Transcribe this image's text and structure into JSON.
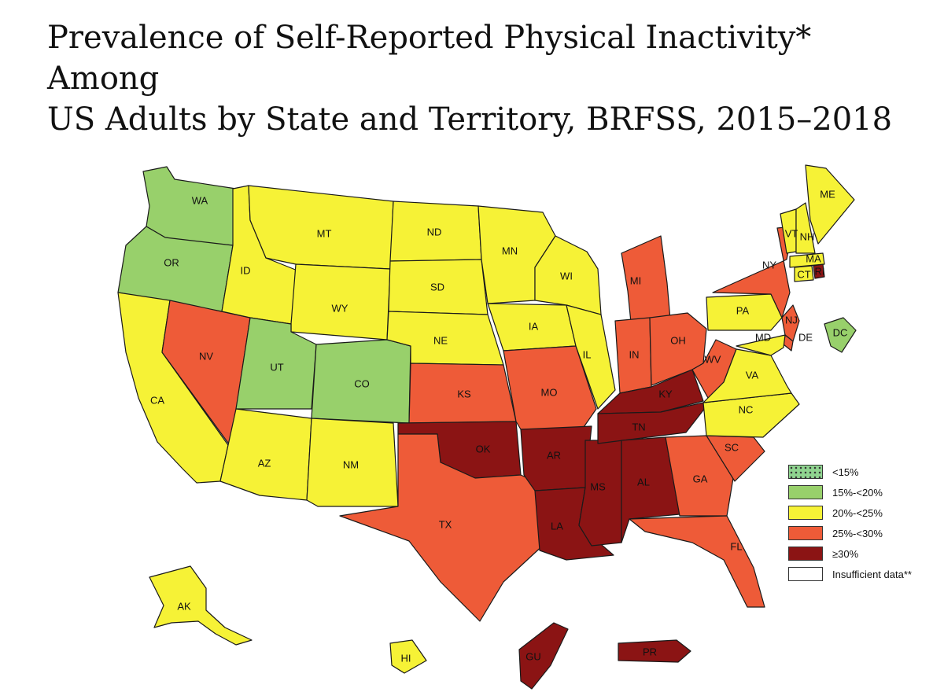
{
  "title": {
    "line1": "Prevalence of Self-Reported Physical Inactivity* Among",
    "line2": "US Adults by State and Territory, BRFSS, 2015–2018"
  },
  "colors": {
    "lt15": "#8fd48f",
    "15_20": "#98d06b",
    "20_25": "#f6f236",
    "25_30": "#ee5b38",
    "ge30": "#8b1414",
    "insufficient": "#ffffff"
  },
  "legend": [
    {
      "key": "lt15",
      "label": "<15%",
      "pattern": "dots"
    },
    {
      "key": "15_20",
      "label": "15%-<20%"
    },
    {
      "key": "20_25",
      "label": "20%-<25%"
    },
    {
      "key": "25_30",
      "label": "25%-<30%"
    },
    {
      "key": "ge30",
      "label": "≥30%"
    },
    {
      "key": "insufficient",
      "label": "Insufficient data**"
    }
  ],
  "states": [
    {
      "abbr": "WA",
      "category": "15_20"
    },
    {
      "abbr": "OR",
      "category": "15_20"
    },
    {
      "abbr": "CA",
      "category": "20_25"
    },
    {
      "abbr": "NV",
      "category": "25_30"
    },
    {
      "abbr": "ID",
      "category": "20_25"
    },
    {
      "abbr": "MT",
      "category": "20_25"
    },
    {
      "abbr": "WY",
      "category": "20_25"
    },
    {
      "abbr": "UT",
      "category": "15_20"
    },
    {
      "abbr": "CO",
      "category": "15_20"
    },
    {
      "abbr": "AZ",
      "category": "20_25"
    },
    {
      "abbr": "NM",
      "category": "20_25"
    },
    {
      "abbr": "ND",
      "category": "20_25"
    },
    {
      "abbr": "SD",
      "category": "20_25"
    },
    {
      "abbr": "NE",
      "category": "20_25"
    },
    {
      "abbr": "KS",
      "category": "25_30"
    },
    {
      "abbr": "OK",
      "category": "ge30"
    },
    {
      "abbr": "TX",
      "category": "25_30"
    },
    {
      "abbr": "MN",
      "category": "20_25"
    },
    {
      "abbr": "IA",
      "category": "20_25"
    },
    {
      "abbr": "MO",
      "category": "25_30"
    },
    {
      "abbr": "AR",
      "category": "ge30"
    },
    {
      "abbr": "LA",
      "category": "ge30"
    },
    {
      "abbr": "WI",
      "category": "20_25"
    },
    {
      "abbr": "IL",
      "category": "20_25"
    },
    {
      "abbr": "MS",
      "category": "ge30"
    },
    {
      "abbr": "MI",
      "category": "25_30"
    },
    {
      "abbr": "IN",
      "category": "25_30"
    },
    {
      "abbr": "KY",
      "category": "ge30"
    },
    {
      "abbr": "TN",
      "category": "ge30"
    },
    {
      "abbr": "AL",
      "category": "ge30"
    },
    {
      "abbr": "OH",
      "category": "25_30"
    },
    {
      "abbr": "WV",
      "category": "25_30"
    },
    {
      "abbr": "GA",
      "category": "25_30"
    },
    {
      "abbr": "FL",
      "category": "25_30"
    },
    {
      "abbr": "SC",
      "category": "25_30"
    },
    {
      "abbr": "NC",
      "category": "20_25"
    },
    {
      "abbr": "VA",
      "category": "20_25"
    },
    {
      "abbr": "PA",
      "category": "20_25"
    },
    {
      "abbr": "NY",
      "category": "25_30"
    },
    {
      "abbr": "NJ",
      "category": "25_30"
    },
    {
      "abbr": "DE",
      "category": "25_30"
    },
    {
      "abbr": "MD",
      "category": "20_25"
    },
    {
      "abbr": "DC",
      "category": "15_20"
    },
    {
      "abbr": "VT",
      "category": "20_25"
    },
    {
      "abbr": "NH",
      "category": "20_25"
    },
    {
      "abbr": "ME",
      "category": "20_25"
    },
    {
      "abbr": "MA",
      "category": "20_25"
    },
    {
      "abbr": "CT",
      "category": "20_25"
    },
    {
      "abbr": "RI",
      "category": "ge30"
    },
    {
      "abbr": "AK",
      "category": "20_25"
    },
    {
      "abbr": "HI",
      "category": "20_25"
    },
    {
      "abbr": "GU",
      "category": "ge30"
    },
    {
      "abbr": "PR",
      "category": "ge30"
    }
  ]
}
